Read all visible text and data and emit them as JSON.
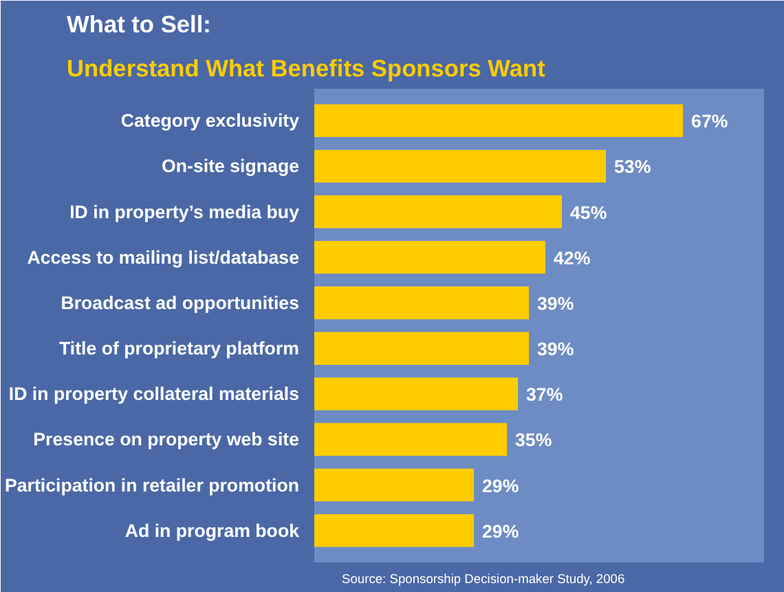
{
  "chart_data": {
    "type": "bar",
    "orientation": "horizontal",
    "title": "What to Sell:",
    "subtitle": "Understand What Benefits Sponsors Want",
    "categories": [
      "Category exclusivity",
      "On-site signage",
      "ID in property’s media buy",
      "Access to mailing list/database",
      "Broadcast ad opportunities",
      "Title of proprietary platform",
      "ID in property collateral materials",
      "Presence on property web site",
      "Participation in retailer promotion",
      "Ad in program book"
    ],
    "values": [
      67,
      53,
      45,
      42,
      39,
      39,
      37,
      35,
      29,
      29
    ],
    "value_labels": [
      "67%",
      "53%",
      "45%",
      "42%",
      "39%",
      "39%",
      "37%",
      "35%",
      "29%",
      "29%"
    ],
    "color": "#ffcc00",
    "annotations": [
      "Source: Sponsorship Decision-maker Study, 2006"
    ]
  }
}
